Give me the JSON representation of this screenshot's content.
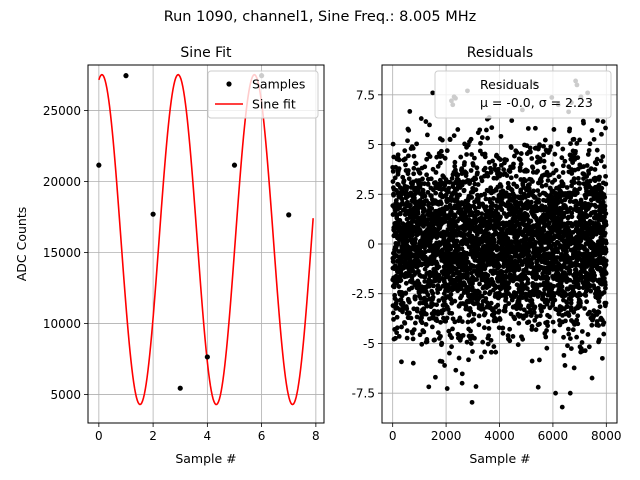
{
  "figure": {
    "suptitle": "Run 1090, channel1, Sine Freq.: 8.005 MHz"
  },
  "chart_data": [
    {
      "type": "scatter",
      "title": "Sine Fit",
      "xlabel": "Sample #",
      "ylabel": "ADC Counts",
      "xlim": [
        -0.4,
        8.3
      ],
      "ylim": [
        3000,
        28200
      ],
      "xticks": [
        0,
        2,
        4,
        6,
        8
      ],
      "yticks": [
        5000,
        10000,
        15000,
        20000,
        25000
      ],
      "grid": true,
      "legend": {
        "placement": "upper right",
        "entries": [
          "Samples",
          "Sine fit"
        ]
      },
      "series": [
        {
          "name": "Samples",
          "marker": "dot",
          "color": "#000000",
          "x": [
            0,
            1,
            2,
            3,
            4,
            5,
            6,
            7
          ],
          "y": [
            21150,
            27450,
            17700,
            5450,
            7650,
            21150,
            27450,
            17650
          ]
        },
        {
          "name": "Sine fit",
          "line": true,
          "color": "#ff0000",
          "fit": {
            "offset": 15910,
            "amplitude": 11610,
            "phase_deg": 75.55,
            "step_deg": 128.09
          },
          "x_range": [
            0,
            7.9
          ]
        }
      ]
    },
    {
      "type": "scatter",
      "title": "Residuals",
      "xlabel": "Sample #",
      "ylabel": "",
      "xlim": [
        -400,
        8400
      ],
      "ylim": [
        -9.0,
        9.0
      ],
      "xticks": [
        0,
        2000,
        4000,
        6000,
        8000
      ],
      "yticks": [
        -7.5,
        -5.0,
        -2.5,
        0.0,
        2.5,
        5.0,
        7.5
      ],
      "grid": true,
      "legend": {
        "placement": "upper right",
        "entries": [
          "Residuals",
          "μ = -0.0, σ = 2.23"
        ]
      },
      "series": [
        {
          "name": "Residuals",
          "marker": "dot",
          "color": "#000000",
          "n_points": 8000,
          "mean": 0.0,
          "sigma": 2.23,
          "highlighted_outliers": [
            [
              1500,
              7.6
            ],
            [
              2200,
              7.2
            ],
            [
              2250,
              7.0
            ],
            [
              2300,
              7.4
            ],
            [
              2800,
              7.7
            ],
            [
              6200,
              7.0
            ],
            [
              6850,
              8.2
            ],
            [
              6900,
              8.0
            ],
            [
              7050,
              7.4
            ],
            [
              7300,
              7.6
            ],
            [
              5450,
              -7.2
            ],
            [
              6100,
              -7.5
            ],
            [
              6350,
              -8.2
            ],
            [
              6650,
              -7.5
            ],
            [
              1600,
              -6.7
            ],
            [
              2600,
              -7.0
            ]
          ]
        }
      ]
    }
  ]
}
